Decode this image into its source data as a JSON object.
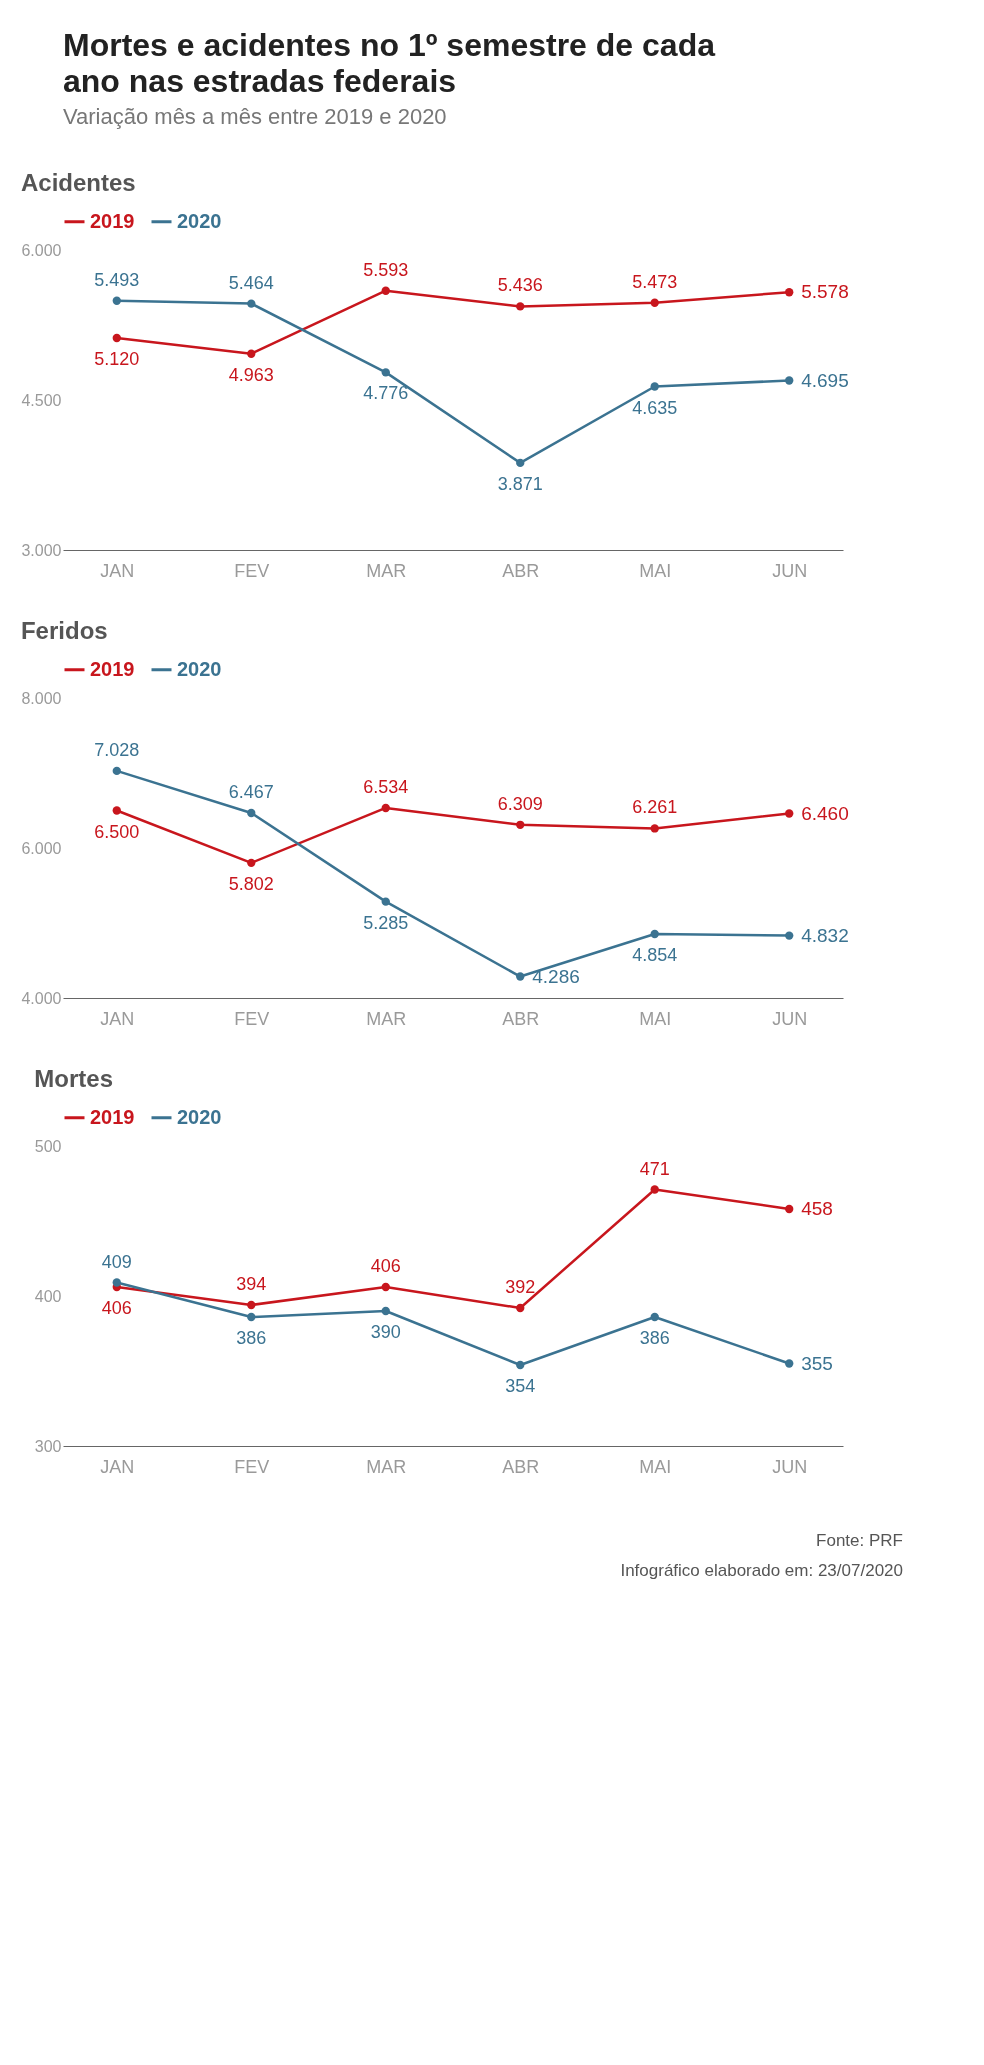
{
  "chart_data": [
    {
      "type": "other",
      "title": "Mortes e acidentes no 1º semestre de cada ano nas estradas federais",
      "subtitle": "Variação mês a mês entre 2019 e 2020"
    },
    {
      "type": "line",
      "title": "Acidentes",
      "categories": [
        "JAN",
        "FEV",
        "MAR",
        "ABR",
        "MAI",
        "JUN"
      ],
      "ylim": [
        3000,
        6000
      ],
      "yticks": [
        {
          "value": 3000,
          "label": "3.000"
        },
        {
          "value": 4500,
          "label": "4.500"
        },
        {
          "value": 6000,
          "label": "6.000"
        }
      ],
      "grid": false,
      "legend": "top",
      "marker": "circle",
      "line_style": "solid",
      "series": [
        {
          "name": "2019",
          "color": "#c8161d",
          "values": [
            5120,
            4963,
            5593,
            5436,
            5473,
            5578
          ],
          "value_labels": [
            "5.120",
            "4.963",
            "5.593",
            "5.436",
            "5.473",
            "5.578"
          ]
        },
        {
          "name": "2020",
          "color": "#3b7391",
          "values": [
            5493,
            5464,
            4776,
            3871,
            4635,
            4695
          ],
          "value_labels": [
            "5.493",
            "5.464",
            "4.776",
            "3.871",
            "4.635",
            "4.695"
          ]
        }
      ]
    },
    {
      "type": "line",
      "title": "Feridos",
      "categories": [
        "JAN",
        "FEV",
        "MAR",
        "ABR",
        "MAI",
        "JUN"
      ],
      "ylim": [
        4000,
        8000
      ],
      "yticks": [
        {
          "value": 4000,
          "label": "4.000"
        },
        {
          "value": 6000,
          "label": "6.000"
        },
        {
          "value": 8000,
          "label": "8.000"
        }
      ],
      "grid": false,
      "legend": "top",
      "marker": "circle",
      "line_style": "solid",
      "series": [
        {
          "name": "2019",
          "color": "#c8161d",
          "values": [
            6500,
            5802,
            6534,
            6309,
            6261,
            6460
          ],
          "value_labels": [
            "6.500",
            "5.802",
            "6.534",
            "6.309",
            "6.261",
            "6.460"
          ]
        },
        {
          "name": "2020",
          "color": "#3b7391",
          "values": [
            7028,
            6467,
            5285,
            4286,
            4854,
            4832
          ],
          "value_labels": [
            "7.028",
            "6.467",
            "5.285",
            "4.286",
            "4.854",
            "4.832"
          ]
        }
      ]
    },
    {
      "type": "line",
      "title": "Mortes",
      "categories": [
        "JAN",
        "FEV",
        "MAR",
        "ABR",
        "MAI",
        "JUN"
      ],
      "ylim": [
        300,
        500
      ],
      "yticks": [
        300,
        400,
        500
      ],
      "grid": false,
      "legend": "top",
      "marker": "circle",
      "line_style": "solid",
      "data_labels": true,
      "series": [
        {
          "name": "2019",
          "color": "#c8161d",
          "values": [
            406,
            394,
            406,
            392,
            471,
            458
          ]
        },
        {
          "name": "2020",
          "color": "#3b7391",
          "values": [
            409,
            386,
            390,
            354,
            386,
            355
          ]
        }
      ]
    },
    {
      "type": "other",
      "annotations": [
        "Fonte: PRF",
        "Infográfico elaborado em: 23/07/2020"
      ]
    }
  ]
}
